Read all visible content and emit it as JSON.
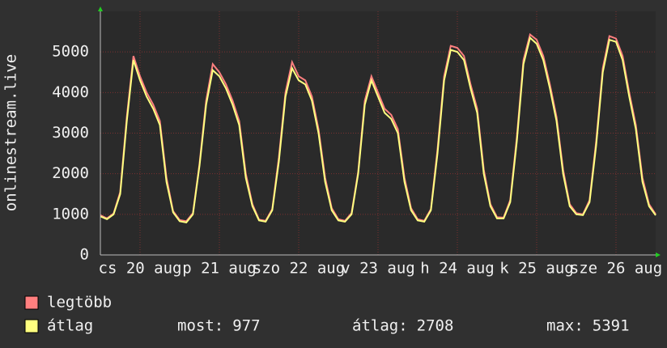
{
  "chart_data": {
    "type": "line",
    "y_label": "onlinestream.live",
    "x": [
      0,
      2,
      4,
      6,
      8,
      10,
      12,
      14,
      16,
      18,
      20,
      22,
      24,
      26,
      28,
      30,
      32,
      34,
      36,
      38,
      40,
      42,
      44,
      46,
      48,
      50,
      52,
      54,
      56,
      58,
      60,
      62,
      64,
      66,
      68,
      70,
      72,
      74,
      76,
      78,
      80,
      82,
      84,
      86,
      88,
      90,
      92,
      94,
      96,
      98,
      100,
      102,
      104,
      106,
      108,
      110,
      112,
      114,
      116,
      118,
      120,
      122,
      124,
      126,
      128,
      130,
      132,
      134,
      136,
      138,
      140,
      142,
      144,
      146,
      148,
      150,
      152,
      154,
      156,
      158,
      160,
      162,
      164,
      166,
      168
    ],
    "xlim": [
      0,
      168
    ],
    "xticks": [
      {
        "value": 12,
        "label": "cs 20 aug"
      },
      {
        "value": 36,
        "label": "p 21 aug"
      },
      {
        "value": 60,
        "label": "szo 22 aug"
      },
      {
        "value": 84,
        "label": "v 23 aug"
      },
      {
        "value": 108,
        "label": "h 24 aug"
      },
      {
        "value": 132,
        "label": "k 25 aug"
      },
      {
        "value": 156,
        "label": "sze 26 aug"
      }
    ],
    "ylim": [
      0,
      6000
    ],
    "yticks": [
      0,
      1000,
      2000,
      3000,
      4000,
      5000
    ],
    "grid": true,
    "series": [
      {
        "name": "legtöbb",
        "color": "#ff7f7f",
        "values": [
          980,
          900,
          1020,
          1550,
          3400,
          4900,
          4400,
          4000,
          3700,
          3300,
          1900,
          1080,
          860,
          830,
          1030,
          2250,
          3800,
          4700,
          4500,
          4200,
          3800,
          3300,
          2000,
          1250,
          870,
          840,
          1130,
          2400,
          4000,
          4750,
          4400,
          4300,
          3900,
          3100,
          1900,
          1150,
          880,
          840,
          1030,
          2050,
          3800,
          4400,
          4000,
          3600,
          3450,
          3100,
          1900,
          1150,
          880,
          840,
          1130,
          2600,
          4400,
          5150,
          5100,
          4900,
          4200,
          3600,
          2100,
          1250,
          930,
          920,
          1350,
          2900,
          4800,
          5430,
          5300,
          4900,
          4200,
          3400,
          2100,
          1250,
          1030,
          1000,
          1350,
          2800,
          4600,
          5391,
          5330,
          4900,
          4000,
          3200,
          1900,
          1250,
          1000
        ]
      },
      {
        "name": "átlag",
        "color": "#ffff80",
        "values": [
          950,
          880,
          1000,
          1500,
          3300,
          4800,
          4300,
          3900,
          3600,
          3200,
          1800,
          1050,
          830,
          800,
          1000,
          2200,
          3700,
          4550,
          4400,
          4100,
          3700,
          3200,
          1900,
          1200,
          850,
          820,
          1100,
          2300,
          3900,
          4600,
          4300,
          4200,
          3800,
          3000,
          1800,
          1100,
          850,
          820,
          1000,
          2000,
          3700,
          4300,
          3900,
          3500,
          3350,
          3000,
          1800,
          1100,
          850,
          820,
          1100,
          2500,
          4300,
          5050,
          5000,
          4800,
          4100,
          3500,
          2000,
          1200,
          900,
          900,
          1300,
          2800,
          4700,
          5350,
          5200,
          4800,
          4100,
          3300,
          2000,
          1200,
          1000,
          980,
          1300,
          2700,
          4500,
          5300,
          5250,
          4800,
          3900,
          3100,
          1800,
          1200,
          977
        ]
      }
    ],
    "stats": [
      {
        "label": "most:",
        "value": 977
      },
      {
        "label": "átlag:",
        "value": 2708
      },
      {
        "label": "max:",
        "value": 5391
      }
    ]
  }
}
